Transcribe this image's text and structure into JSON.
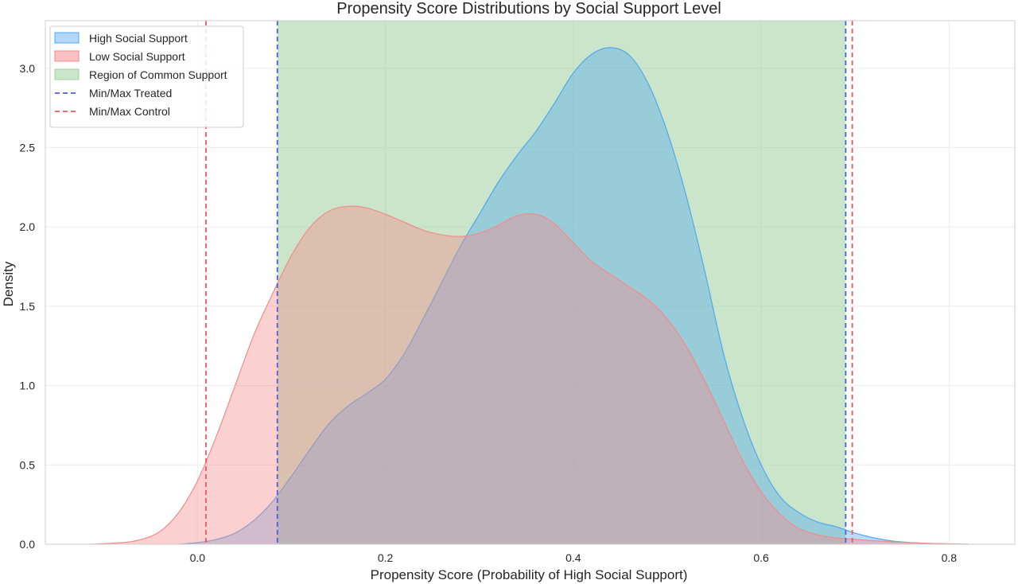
{
  "chart_data": {
    "type": "area",
    "title": "Propensity Score Distributions by Social Support Level",
    "xlabel": "Propensity Score (Probability of High Social Support)",
    "ylabel": "Density",
    "xlim": [
      -0.162,
      0.87
    ],
    "ylim": [
      0,
      3.3
    ],
    "xticks": [
      0.0,
      0.2,
      0.4,
      0.6,
      0.8
    ],
    "xtick_labels": [
      "0.0",
      "0.2",
      "0.4",
      "0.6",
      "0.8"
    ],
    "yticks": [
      0.0,
      0.5,
      1.0,
      1.5,
      2.0,
      2.5,
      3.0
    ],
    "ytick_labels": [
      "0.0",
      "0.5",
      "1.0",
      "1.5",
      "2.0",
      "2.5",
      "3.0"
    ],
    "grid": true,
    "legend_position": "top-left",
    "series": [
      {
        "name": "High Social Support",
        "color": "#4fa8f0",
        "x": [
          -0.02,
          0.0,
          0.02,
          0.04,
          0.06,
          0.08,
          0.1,
          0.12,
          0.14,
          0.16,
          0.18,
          0.2,
          0.22,
          0.24,
          0.26,
          0.28,
          0.3,
          0.32,
          0.34,
          0.36,
          0.38,
          0.4,
          0.42,
          0.44,
          0.46,
          0.48,
          0.5,
          0.52,
          0.54,
          0.56,
          0.58,
          0.6,
          0.62,
          0.64,
          0.66,
          0.68,
          0.7,
          0.72,
          0.74,
          0.76,
          0.78,
          0.8,
          0.82
        ],
        "y": [
          0.0,
          0.01,
          0.03,
          0.07,
          0.15,
          0.27,
          0.43,
          0.6,
          0.76,
          0.87,
          0.95,
          1.04,
          1.2,
          1.42,
          1.65,
          1.88,
          2.08,
          2.28,
          2.45,
          2.6,
          2.78,
          2.97,
          3.09,
          3.13,
          3.08,
          2.9,
          2.6,
          2.2,
          1.72,
          1.2,
          0.8,
          0.5,
          0.3,
          0.2,
          0.14,
          0.11,
          0.07,
          0.04,
          0.02,
          0.01,
          0.005,
          0.002,
          0.0
        ]
      },
      {
        "name": "Low Social Support",
        "color": "#f58a8a",
        "x": [
          -0.115,
          -0.08,
          -0.06,
          -0.04,
          -0.02,
          0.0,
          0.02,
          0.04,
          0.06,
          0.08,
          0.1,
          0.12,
          0.14,
          0.16,
          0.18,
          0.2,
          0.22,
          0.24,
          0.26,
          0.28,
          0.3,
          0.32,
          0.34,
          0.36,
          0.38,
          0.4,
          0.42,
          0.44,
          0.46,
          0.48,
          0.5,
          0.52,
          0.54,
          0.56,
          0.58,
          0.6,
          0.62,
          0.64,
          0.66,
          0.68,
          0.7,
          0.74,
          0.78,
          0.82
        ],
        "y": [
          0.0,
          0.01,
          0.03,
          0.08,
          0.2,
          0.4,
          0.68,
          1.0,
          1.32,
          1.58,
          1.82,
          2.0,
          2.1,
          2.13,
          2.12,
          2.08,
          2.03,
          1.98,
          1.95,
          1.94,
          1.96,
          2.01,
          2.07,
          2.08,
          2.02,
          1.9,
          1.78,
          1.7,
          1.62,
          1.54,
          1.42,
          1.25,
          1.03,
          0.78,
          0.53,
          0.33,
          0.19,
          0.1,
          0.06,
          0.04,
          0.03,
          0.015,
          0.005,
          0.0
        ]
      }
    ],
    "common_support": {
      "name": "Region of Common Support",
      "color": "#9fd09f",
      "x_range": [
        0.085,
        0.69
      ]
    },
    "reference_lines": [
      {
        "name": "Min/Max Treated",
        "color": "#4b5fe0",
        "x": [
          0.085,
          0.69
        ]
      },
      {
        "name": "Min/Max Control",
        "color": "#ee5a5a",
        "x": [
          0.009,
          0.697
        ]
      }
    ]
  },
  "legend": {
    "items": [
      {
        "label": "High Social Support",
        "kind": "patch",
        "color": "#b3d8f7",
        "edge": "#4fa8f0"
      },
      {
        "label": "Low Social Support",
        "kind": "patch",
        "color": "#f9c1c1",
        "edge": "#f58a8a"
      },
      {
        "label": "Region of Common Support",
        "kind": "patch",
        "color": "#c9e6c9",
        "edge": "#9fd09f"
      },
      {
        "label": "Min/Max Treated",
        "kind": "line",
        "color": "#4b5fe0"
      },
      {
        "label": "Min/Max Control",
        "kind": "line",
        "color": "#ee5a5a"
      }
    ]
  }
}
